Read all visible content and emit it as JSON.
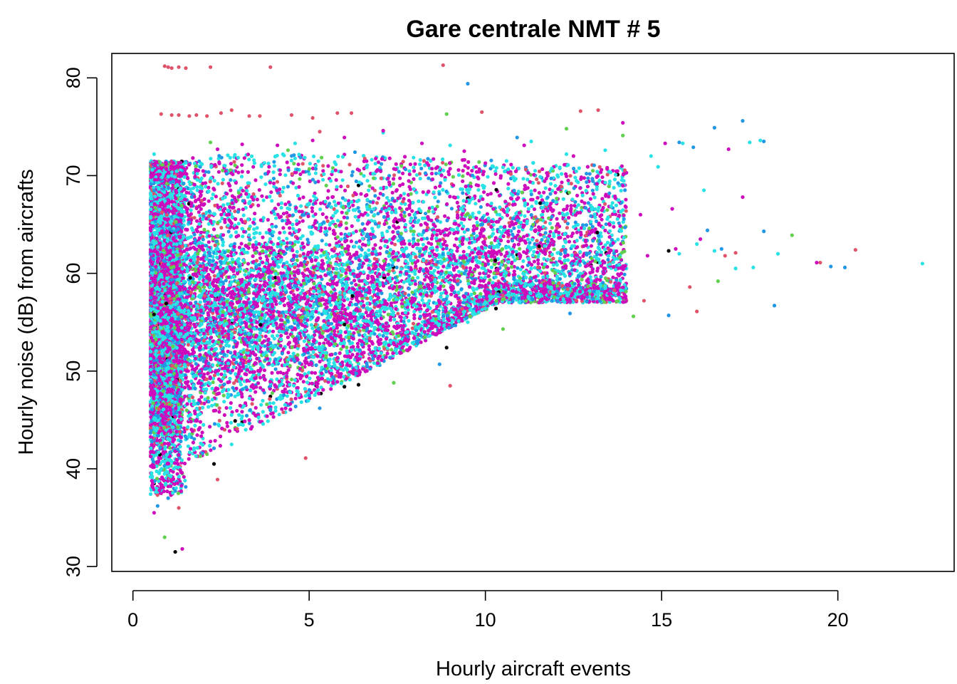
{
  "chart_data": {
    "type": "scatter",
    "title": "Gare centrale NMT # 5",
    "xlabel": "Hourly aircraft events",
    "ylabel": "Hourly noise (dB) from aircrafts",
    "xlim": [
      -0.6,
      23.3
    ],
    "ylim": [
      29.5,
      82.5
    ],
    "x_ticks": [
      0,
      5,
      10,
      15,
      20
    ],
    "y_ticks": [
      30,
      40,
      50,
      60,
      70,
      80
    ],
    "grid": false,
    "legend": "none",
    "series_colors": [
      "#000000",
      "#df536b",
      "#61d04f",
      "#2297e6",
      "#28e2e5",
      "#cd0bbc"
    ],
    "series": [
      {
        "color": "#df536b",
        "points": [
          [
            0.9,
            81.2
          ],
          [
            1.0,
            81.1
          ],
          [
            1.1,
            81.0
          ],
          [
            1.3,
            81.1
          ],
          [
            1.5,
            81.0
          ],
          [
            2.2,
            81.1
          ],
          [
            3.9,
            81.1
          ],
          [
            8.8,
            81.3
          ],
          [
            0.8,
            76.3
          ],
          [
            1.1,
            76.2
          ],
          [
            1.3,
            76.2
          ],
          [
            1.6,
            76.1
          ],
          [
            1.8,
            76.2
          ],
          [
            2.1,
            76.1
          ],
          [
            2.5,
            76.4
          ],
          [
            2.8,
            76.7
          ],
          [
            3.3,
            76.1
          ],
          [
            3.6,
            76.1
          ],
          [
            4.5,
            76.2
          ],
          [
            5.1,
            75.9
          ],
          [
            5.8,
            76.4
          ],
          [
            6.2,
            76.4
          ],
          [
            9.9,
            76.5
          ],
          [
            12.7,
            76.6
          ],
          [
            13.2,
            76.7
          ],
          [
            5.3,
            74.5
          ],
          [
            8.8,
            63.5
          ],
          [
            12.8,
            62.0
          ],
          [
            17.1,
            62.1
          ],
          [
            20.5,
            62.4
          ],
          [
            16.8,
            61.8
          ],
          [
            19.5,
            61.1
          ],
          [
            15.8,
            58.6
          ],
          [
            16.0,
            56.1
          ],
          [
            14.5,
            57.2
          ],
          [
            9.0,
            48.5
          ],
          [
            4.9,
            41.1
          ],
          [
            6.1,
            49.3
          ],
          [
            7.8,
            52.1
          ],
          [
            3.5,
            49.5
          ],
          [
            1.3,
            36.0
          ],
          [
            2.4,
            38.9
          ],
          [
            1.8,
            41.3
          ],
          [
            2.6,
            44.0
          ],
          [
            1.4,
            70.7
          ],
          [
            0.9,
            70.5
          ],
          [
            11.8,
            70.3
          ]
        ]
      },
      {
        "color": "#61d04f",
        "points": [
          [
            0.9,
            33.0
          ],
          [
            1.1,
            37.6
          ],
          [
            1.4,
            39.5
          ],
          [
            2.1,
            41.5
          ],
          [
            2.9,
            44.2
          ],
          [
            3.8,
            46.6
          ],
          [
            5.2,
            48.9
          ],
          [
            7.4,
            48.8
          ],
          [
            8.9,
            76.3
          ],
          [
            12.3,
            74.8
          ],
          [
            13.9,
            74.1
          ],
          [
            18.7,
            63.9
          ],
          [
            16.6,
            59.2
          ],
          [
            14.2,
            55.6
          ],
          [
            10.5,
            54.3
          ],
          [
            6.7,
            53.9
          ],
          [
            4.4,
            72.6
          ],
          [
            2.2,
            73.4
          ]
        ]
      },
      {
        "color": "#2297e6",
        "points": [
          [
            9.5,
            79.4
          ],
          [
            16.5,
            74.9
          ],
          [
            17.3,
            75.6
          ],
          [
            15.5,
            73.4
          ],
          [
            15.9,
            72.9
          ],
          [
            17.9,
            73.5
          ],
          [
            0.7,
            36.2
          ],
          [
            1.0,
            37.0
          ],
          [
            3.9,
            46.0
          ],
          [
            5.3,
            46.2
          ],
          [
            7.0,
            50.6
          ],
          [
            8.7,
            50.7
          ],
          [
            12.4,
            55.9
          ],
          [
            15.2,
            55.7
          ],
          [
            18.2,
            56.7
          ],
          [
            17.9,
            64.3
          ],
          [
            19.8,
            60.7
          ],
          [
            20.2,
            60.6
          ],
          [
            16.3,
            64.4
          ],
          [
            16.7,
            62.5
          ],
          [
            10.9,
            73.9
          ],
          [
            6.3,
            72.4
          ]
        ]
      },
      {
        "color": "#28e2e5",
        "points": [
          [
            0.6,
            72.2
          ],
          [
            22.4,
            61.0
          ],
          [
            17.5,
            73.4
          ],
          [
            17.8,
            73.6
          ],
          [
            14.7,
            72.0
          ],
          [
            15.6,
            73.3
          ],
          [
            11.3,
            73.5
          ],
          [
            12.0,
            71.0
          ],
          [
            13.8,
            69.0
          ],
          [
            16.2,
            68.5
          ],
          [
            17.6,
            60.6
          ],
          [
            18.3,
            62.0
          ],
          [
            0.9,
            39.8
          ],
          [
            1.2,
            41.0
          ],
          [
            1.5,
            43.0
          ],
          [
            2.0,
            44.5
          ],
          [
            2.8,
            42.5
          ],
          [
            3.2,
            44.0
          ],
          [
            4.2,
            47.5
          ],
          [
            5.5,
            49.0
          ],
          [
            6.8,
            52.0
          ],
          [
            8.2,
            53.5
          ],
          [
            9.5,
            55.0
          ],
          [
            11.0,
            57.0
          ],
          [
            12.5,
            58.5
          ],
          [
            14.0,
            60.5
          ],
          [
            15.5,
            62.0
          ],
          [
            16.5,
            62.3
          ],
          [
            4.6,
            73.3
          ],
          [
            7.1,
            74.4
          ],
          [
            9.0,
            73.1
          ],
          [
            10.6,
            71.5
          ],
          [
            12.3,
            72.2
          ],
          [
            13.4,
            72.6
          ],
          [
            14.9,
            70.9
          ],
          [
            16.0,
            63.0
          ],
          [
            17.1,
            60.5
          ],
          [
            13.1,
            61.7
          ],
          [
            11.7,
            60.8
          ],
          [
            10.2,
            58.8
          ]
        ]
      },
      {
        "color": "#cd0bbc",
        "points": [
          [
            0.6,
            35.5
          ],
          [
            1.4,
            31.8
          ],
          [
            0.8,
            37.5
          ],
          [
            1.0,
            38.2
          ],
          [
            1.3,
            39.0
          ],
          [
            1.6,
            41.5
          ],
          [
            2.2,
            42.8
          ],
          [
            2.6,
            45.5
          ],
          [
            3.2,
            46.5
          ],
          [
            4.0,
            48.0
          ],
          [
            4.8,
            49.5
          ],
          [
            5.8,
            51.0
          ],
          [
            6.8,
            52.8
          ],
          [
            7.8,
            54.2
          ],
          [
            8.8,
            55.5
          ],
          [
            9.8,
            57.0
          ],
          [
            10.8,
            58.0
          ],
          [
            11.8,
            59.2
          ],
          [
            12.8,
            60.1
          ],
          [
            13.8,
            61.0
          ],
          [
            14.6,
            61.8
          ],
          [
            15.4,
            62.5
          ],
          [
            16.1,
            63.5
          ],
          [
            19.4,
            61.1
          ],
          [
            17.3,
            67.8
          ],
          [
            16.9,
            72.7
          ],
          [
            15.1,
            73.3
          ],
          [
            13.9,
            75.4
          ],
          [
            12.5,
            72.0
          ],
          [
            11.1,
            73.1
          ],
          [
            9.4,
            72.5
          ],
          [
            8.2,
            73.3
          ],
          [
            7.1,
            74.6
          ],
          [
            6.0,
            73.9
          ],
          [
            5.1,
            73.6
          ],
          [
            4.1,
            73.1
          ],
          [
            3.1,
            73.2
          ],
          [
            2.4,
            72.7
          ],
          [
            1.7,
            71.8
          ],
          [
            0.9,
            70.8
          ],
          [
            1.2,
            66.2
          ],
          [
            2.0,
            67.0
          ],
          [
            3.0,
            66.5
          ],
          [
            4.2,
            65.8
          ],
          [
            5.3,
            64.5
          ],
          [
            6.5,
            64.0
          ],
          [
            7.6,
            63.3
          ],
          [
            8.8,
            62.5
          ],
          [
            10.2,
            61.8
          ],
          [
            11.5,
            61.0
          ],
          [
            0.7,
            60.0
          ],
          [
            1.5,
            58.0
          ],
          [
            2.5,
            57.5
          ],
          [
            3.5,
            57.0
          ],
          [
            4.5,
            56.5
          ],
          [
            5.5,
            56.0
          ],
          [
            6.5,
            57.5
          ],
          [
            7.5,
            58.5
          ],
          [
            8.5,
            59.0
          ],
          [
            9.5,
            59.5
          ],
          [
            0.8,
            52.0
          ],
          [
            1.8,
            53.0
          ],
          [
            2.8,
            53.5
          ],
          [
            3.8,
            54.5
          ],
          [
            4.8,
            55.0
          ],
          [
            5.8,
            55.5
          ],
          [
            0.7,
            45.0
          ],
          [
            1.2,
            48.0
          ],
          [
            1.9,
            49.0
          ],
          [
            2.7,
            50.0
          ],
          [
            3.6,
            51.0
          ],
          [
            4.6,
            52.5
          ],
          [
            0.6,
            62.5
          ],
          [
            1.4,
            63.5
          ],
          [
            2.3,
            64.5
          ],
          [
            3.3,
            63.0
          ],
          [
            4.3,
            62.0
          ],
          [
            5.4,
            61.0
          ],
          [
            6.4,
            60.5
          ],
          [
            7.4,
            61.5
          ],
          [
            8.4,
            60.0
          ],
          [
            9.2,
            61.0
          ],
          [
            10.1,
            62.2
          ],
          [
            11.0,
            63.5
          ],
          [
            12.1,
            64.8
          ],
          [
            13.3,
            65.5
          ],
          [
            14.4,
            66.0
          ],
          [
            15.3,
            66.6
          ]
        ]
      },
      {
        "color": "#000000",
        "points": [
          [
            1.2,
            31.5
          ],
          [
            0.6,
            38.5
          ],
          [
            2.3,
            40.5
          ],
          [
            2.9,
            44.9
          ],
          [
            3.1,
            44.8
          ],
          [
            3.9,
            47.4
          ],
          [
            5.2,
            48.5
          ],
          [
            6.0,
            48.4
          ],
          [
            6.4,
            48.6
          ],
          [
            8.9,
            52.4
          ],
          [
            9.1,
            54.7
          ],
          [
            10.3,
            56.4
          ],
          [
            10.9,
            61.9
          ],
          [
            15.2,
            62.3
          ],
          [
            6.4,
            69.0
          ]
        ]
      }
    ]
  }
}
